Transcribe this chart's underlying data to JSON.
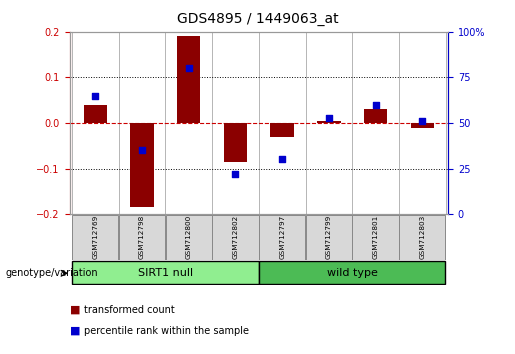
{
  "title": "GDS4895 / 1449063_at",
  "samples": [
    "GSM712769",
    "GSM712798",
    "GSM712800",
    "GSM712802",
    "GSM712797",
    "GSM712799",
    "GSM712801",
    "GSM712803"
  ],
  "red_values": [
    0.04,
    -0.185,
    0.19,
    -0.085,
    -0.03,
    0.005,
    0.03,
    -0.01
  ],
  "blue_values_pct": [
    65,
    35,
    80,
    22,
    30,
    53,
    60,
    51
  ],
  "ylim_left": [
    -0.2,
    0.2
  ],
  "ylim_right": [
    0,
    100
  ],
  "yticks_left": [
    -0.2,
    -0.1,
    0.0,
    0.1,
    0.2
  ],
  "yticks_right": [
    0,
    25,
    50,
    75,
    100
  ],
  "group1_label": "SIRT1 null",
  "group2_label": "wild type",
  "group1_indices": [
    0,
    1,
    2,
    3
  ],
  "group2_indices": [
    4,
    5,
    6,
    7
  ],
  "group1_color": "#90EE90",
  "group2_color": "#4CBB55",
  "bar_color": "#8B0000",
  "dot_color": "#0000CD",
  "legend_label_red": "transformed count",
  "legend_label_blue": "percentile rank within the sample",
  "genotype_label": "genotype/variation",
  "left_tick_color": "#CC0000",
  "right_tick_color": "#0000CC",
  "bar_width": 0.5,
  "dot_size": 18,
  "bg_color": "#FFFFFF",
  "plot_bg": "#FFFFFF",
  "grid_color": "#CCCCCC",
  "spine_color": "#999999"
}
